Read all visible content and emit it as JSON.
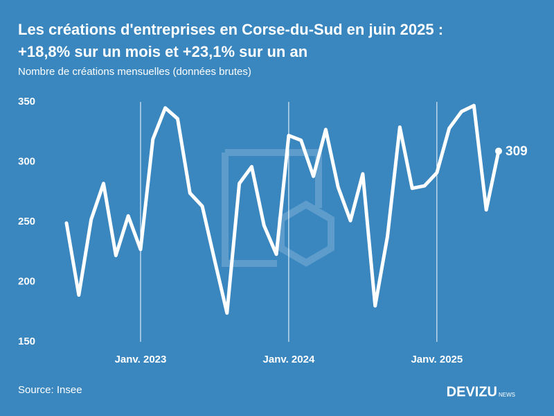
{
  "chart_data": {
    "type": "line",
    "title": "Les créations d'entreprises en Corse-du-Sud en juin 2025 :",
    "title_line2": "+18,8% sur un mois et +23,1% sur un an",
    "subtitle": "Nombre de créations mensuelles (données brutes)",
    "categories": [
      null,
      null,
      null,
      null,
      null,
      null,
      "Janv. 2023",
      null,
      null,
      null,
      null,
      null,
      null,
      null,
      null,
      null,
      null,
      null,
      "Janv. 2024",
      null,
      null,
      null,
      null,
      null,
      null,
      null,
      null,
      null,
      null,
      null,
      "Janv. 2025",
      null,
      null,
      null,
      null,
      null
    ],
    "values": [
      249,
      189,
      252,
      282,
      222,
      255,
      227,
      319,
      345,
      336,
      274,
      263,
      218,
      174,
      282,
      296,
      247,
      223,
      322,
      318,
      288,
      327,
      279,
      251,
      290,
      180,
      238,
      329,
      278,
      280,
      291,
      328,
      342,
      347,
      260,
      309
    ],
    "color": "#ffffff",
    "ylim": [
      150,
      350
    ],
    "yticks": [
      150,
      200,
      250,
      300,
      350
    ]
  },
  "source": "Source: Insee",
  "logo": "DEVIZU",
  "logo_suffix": "NEWS"
}
